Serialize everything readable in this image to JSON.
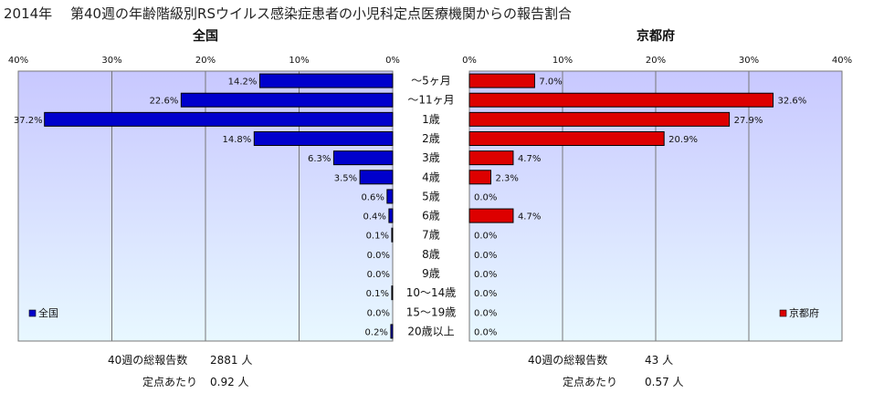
{
  "title": "2014年　 第40週の年齢階級別RSウイルス感染症患者の小児科定点医療機関からの報告割合",
  "categories": [
    "～5ヶ月",
    "～11ヶ月",
    "1歳",
    "2歳",
    "3歳",
    "4歳",
    "5歳",
    "6歳",
    "7歳",
    "8歳",
    "9歳",
    "10～14歳",
    "15～19歳",
    "20歳以上"
  ],
  "colors": {
    "national": "#0000cc",
    "kyoto": "#dd0000",
    "plot_bg_top": "#c8c8ff",
    "plot_bg_bottom": "#e8f8ff"
  },
  "chart_data": [
    {
      "type": "bar",
      "orientation": "horizontal",
      "title": "全国",
      "direction": "right-to-left",
      "xlim": [
        0,
        40
      ],
      "ticks": [
        "40%",
        "30%",
        "20%",
        "10%",
        "0%"
      ],
      "categories": [
        "～5ヶ月",
        "～11ヶ月",
        "1歳",
        "2歳",
        "3歳",
        "4歳",
        "5歳",
        "6歳",
        "7歳",
        "8歳",
        "9歳",
        "10～14歳",
        "15～19歳",
        "20歳以上"
      ],
      "series": [
        {
          "name": "全国",
          "values": [
            14.2,
            22.6,
            37.2,
            14.8,
            6.3,
            3.5,
            0.6,
            0.4,
            0.1,
            0.0,
            0.0,
            0.1,
            0.0,
            0.2
          ]
        }
      ],
      "data_labels": [
        "14.2%",
        "22.6%",
        "37.2%",
        "14.8%",
        "6.3%",
        "3.5%",
        "0.6%",
        "0.4%",
        "0.1%",
        "0.0%",
        "0.0%",
        "0.1%",
        "0.0%",
        "0.2%"
      ],
      "legend": "bottom-left",
      "grid": true
    },
    {
      "type": "bar",
      "orientation": "horizontal",
      "title": "京都府",
      "direction": "left-to-right",
      "xlim": [
        0,
        40
      ],
      "ticks": [
        "0%",
        "10%",
        "20%",
        "30%",
        "40%"
      ],
      "categories": [
        "～5ヶ月",
        "～11ヶ月",
        "1歳",
        "2歳",
        "3歳",
        "4歳",
        "5歳",
        "6歳",
        "7歳",
        "8歳",
        "9歳",
        "10～14歳",
        "15～19歳",
        "20歳以上"
      ],
      "series": [
        {
          "name": "京都府",
          "values": [
            7.0,
            32.6,
            27.9,
            20.9,
            4.7,
            2.3,
            0.0,
            4.7,
            0.0,
            0.0,
            0.0,
            0.0,
            0.0,
            0.0
          ]
        }
      ],
      "data_labels": [
        "7.0%",
        "32.6%",
        "27.9%",
        "20.9%",
        "4.7%",
        "2.3%",
        "0.0%",
        "4.7%",
        "0.0%",
        "0.0%",
        "0.0%",
        "0.0%",
        "0.0%",
        "0.0%"
      ],
      "legend": "bottom-right",
      "grid": true
    }
  ],
  "footer": {
    "national_total_label": "40週の総報告数",
    "national_total_value": "2881 人",
    "national_per_label": "定点あたり",
    "national_per_value": "0.92 人",
    "kyoto_total_label": "40週の総報告数",
    "kyoto_total_value": "43 人",
    "kyoto_per_label": "定点あたり",
    "kyoto_per_value": "0.57 人"
  }
}
